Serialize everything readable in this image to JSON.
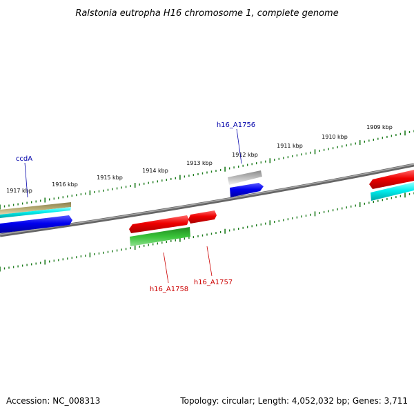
{
  "title": "Ralstonia eutropha H16 chromosome 1, complete genome",
  "footer": {
    "accession": "Accession: NC_008313",
    "summary": "Topology: circular; Length: 4,052,032 bp; Genes: 3,711"
  },
  "colors": {
    "backbone": "#808080",
    "tick": "#1a7a1a",
    "label_blue": "#0000aa",
    "label_red": "#cc0000",
    "gene_red": "#ee0000",
    "gene_blue": "#0000ee",
    "gene_cyan": "#00eeee",
    "gene_green": "#22bb22",
    "gene_khaki": "#b5aa72",
    "gene_gray": "#bbbbbb"
  },
  "ticks": [
    {
      "label": "1917 kbp"
    },
    {
      "label": "1916 kbp"
    },
    {
      "label": "1915 kbp"
    },
    {
      "label": "1914 kbp"
    },
    {
      "label": "1913 kbp"
    },
    {
      "label": "1912 kbp"
    },
    {
      "label": "1911 kbp"
    },
    {
      "label": "1910 kbp"
    },
    {
      "label": "1909 kbp"
    }
  ],
  "gene_labels": [
    {
      "name": "ccdA",
      "color": "blue"
    },
    {
      "name": "h16_A1756",
      "color": "blue"
    },
    {
      "name": "h16_A1758",
      "color": "red"
    },
    {
      "name": "h16_A1757",
      "color": "red"
    }
  ]
}
